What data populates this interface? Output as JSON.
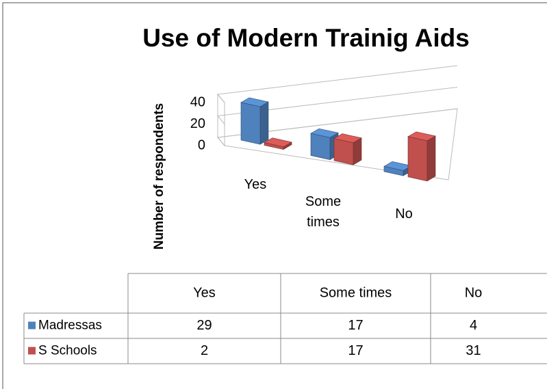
{
  "chart_data": {
    "type": "bar3d",
    "title": "Use of Modern Trainig Aids",
    "ylabel": "Number of respondents",
    "categories": [
      "Yes",
      "Some times",
      "No"
    ],
    "series": [
      {
        "name": "Madressas",
        "color": "#4f81bd",
        "values": [
          29,
          17,
          4
        ]
      },
      {
        "name": "S Schools",
        "color": "#c0504d",
        "values": [
          2,
          17,
          31
        ]
      }
    ],
    "ylim": [
      0,
      40
    ],
    "yticks": [
      0,
      20,
      40
    ],
    "grid": true,
    "data_table": true
  }
}
